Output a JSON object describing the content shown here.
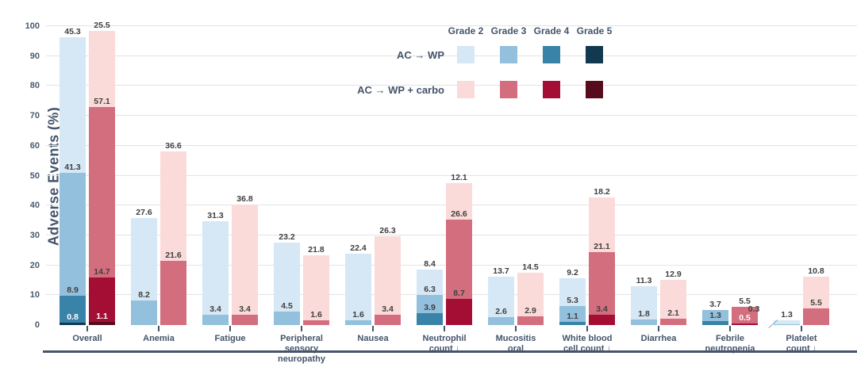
{
  "chart_data": {
    "type": "bar",
    "variant": "grouped-stacked",
    "title": "",
    "ylabel": "Adverse Events (%)",
    "xlabel": "",
    "ylim": [
      0,
      100
    ],
    "ytick_step": 10,
    "grid": true,
    "legend_position": "top-right",
    "grade_labels": [
      "Grade 2",
      "Grade 3",
      "Grade 4",
      "Grade 5"
    ],
    "categories": [
      "Overall",
      "Anemia",
      "Fatigue",
      "Peripheral sensory neuropathy",
      "Nausea",
      "Neutrophil count ↓",
      "Mucositis oral",
      "White blood cell count ↓",
      "Diarrhea",
      "Febrile neutropenia",
      "Platelet count ↓"
    ],
    "category_label_lines": [
      [
        "Overall"
      ],
      [
        "Anemia"
      ],
      [
        "Fatigue"
      ],
      [
        "Peripheral",
        "sensory",
        "neuropathy"
      ],
      [
        "Nausea"
      ],
      [
        "Neutrophil",
        "count ↓"
      ],
      [
        "Mucositis",
        "oral"
      ],
      [
        "White blood",
        "cell count ↓"
      ],
      [
        "Diarrhea"
      ],
      [
        "Febrile",
        "neutropenia"
      ],
      [
        "Platelet",
        "count ↓"
      ]
    ],
    "series": [
      {
        "name": "AC → WP",
        "grade_colors": {
          "Grade 2": "#d6e8f5",
          "Grade 3": "#92c0dd",
          "Grade 4": "#3a83a8",
          "Grade 5": "#123950"
        },
        "values": {
          "Grade 2": [
            45.3,
            27.6,
            31.3,
            23.2,
            22.4,
            8.4,
            13.7,
            9.2,
            11.3,
            null,
            1.3
          ],
          "Grade 3": [
            41.3,
            8.2,
            3.4,
            4.5,
            1.6,
            6.3,
            2.6,
            5.3,
            1.8,
            3.7,
            0.3
          ],
          "Grade 4": [
            8.9,
            null,
            null,
            null,
            null,
            3.9,
            null,
            1.1,
            null,
            1.3,
            null
          ],
          "Grade 5": [
            0.8,
            null,
            null,
            null,
            null,
            null,
            null,
            null,
            null,
            null,
            null
          ]
        }
      },
      {
        "name": "AC → WP + carbo",
        "grade_colors": {
          "Grade 2": "#fbdada",
          "Grade 3": "#d36e7e",
          "Grade 4": "#a40e35",
          "Grade 5": "#570c1d"
        },
        "values": {
          "Grade 2": [
            25.5,
            36.6,
            36.8,
            21.8,
            26.3,
            12.1,
            14.5,
            18.2,
            12.9,
            null,
            10.8
          ],
          "Grade 3": [
            57.1,
            21.6,
            3.4,
            1.6,
            3.4,
            26.6,
            2.9,
            21.1,
            2.1,
            5.5,
            5.5
          ],
          "Grade 4": [
            14.7,
            null,
            null,
            null,
            null,
            8.7,
            null,
            3.4,
            null,
            0.5,
            null
          ],
          "Grade 5": [
            1.1,
            null,
            null,
            null,
            null,
            null,
            null,
            null,
            null,
            null,
            null
          ]
        }
      }
    ],
    "white_value_labels": [
      {
        "series": 0,
        "grade": "Grade 5",
        "category_index": 0
      },
      {
        "series": 1,
        "grade": "Grade 5",
        "category_index": 0
      },
      {
        "series": 1,
        "grade": "Grade 4",
        "category_index": 9
      }
    ],
    "callout_labels": [
      {
        "series": 0,
        "grade": "Grade 3",
        "category_index": 10,
        "style": "leader-line-left"
      }
    ],
    "colors": {
      "axis": "#44546a",
      "grid": "#e3e3e3",
      "value_label": "#3f3f3f",
      "value_label_inverse": "#ffffff"
    }
  }
}
